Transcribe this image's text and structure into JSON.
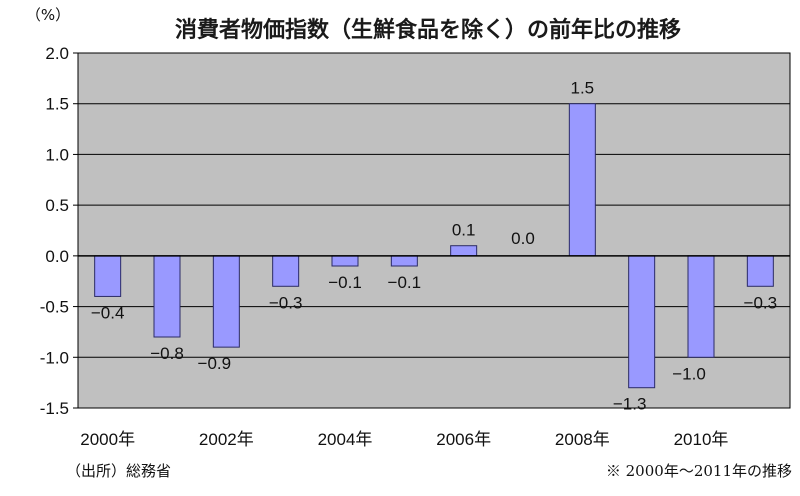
{
  "chart_data": {
    "type": "bar",
    "title": "消費者物価指数（生鮮食品を除く）の前年比の推移",
    "unit": "（%）",
    "categories": [
      "2000",
      "2001",
      "2002",
      "2003",
      "2004",
      "2005",
      "2006",
      "2007",
      "2008",
      "2009",
      "2010",
      "2011"
    ],
    "values": [
      -0.4,
      -0.8,
      -0.9,
      -0.3,
      -0.1,
      -0.1,
      0.1,
      0.0,
      1.5,
      -1.3,
      -1.0,
      -0.3
    ],
    "value_labels": [
      "−0.4",
      "−0.8",
      "−0.9",
      "−0.3",
      "−0.1",
      "−0.1",
      "0.1",
      "0.0",
      "1.5",
      "−1.3",
      "−1.0",
      "−0.3"
    ],
    "x_tick_labels": [
      "2000年",
      "2002年",
      "2004年",
      "2006年",
      "2008年",
      "2010年"
    ],
    "y_tick_labels": [
      "2.0",
      "1.5",
      "1.0",
      "0.5",
      "0.0",
      "-0.5",
      "-1.0",
      "-1.5"
    ],
    "ylim": [
      -1.5,
      2.0
    ],
    "ytick_step": 0.5,
    "xlabel": "",
    "ylabel": "",
    "grid": true,
    "colors": {
      "bar_fill": "#9999ff",
      "bar_stroke": "#2a2a66",
      "plot_bg": "#c0c0c0",
      "grid": "#000000"
    }
  },
  "footer": {
    "source": "（出所）総務省",
    "note": "※ 2000年〜2011年の推移"
  }
}
